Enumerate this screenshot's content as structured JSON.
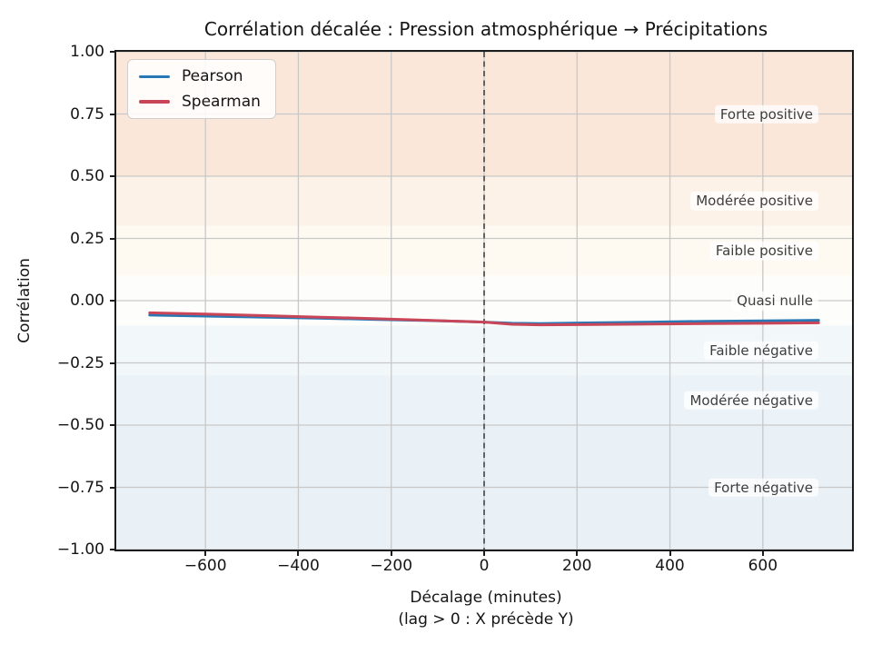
{
  "chart_data": {
    "type": "line",
    "title": "Corrélation décalée : Pression atmosphérique → Précipitations",
    "xlabel": "Décalage (minutes)",
    "xlabel_sub": "(lag > 0 : X précède Y)",
    "ylabel": "Corrélation",
    "xlim": [
      -792,
      792
    ],
    "ylim": [
      -1.0,
      1.0
    ],
    "grid": true,
    "grid_color": "#c8c8c8",
    "legend_position": "upper left",
    "xticks": [
      {
        "label": "−600",
        "value": -600
      },
      {
        "label": "−400",
        "value": -400
      },
      {
        "label": "−200",
        "value": -200
      },
      {
        "label": "0",
        "value": 0
      },
      {
        "label": "200",
        "value": 200
      },
      {
        "label": "400",
        "value": 400
      },
      {
        "label": "600",
        "value": 600
      }
    ],
    "yticks": [
      {
        "label": "1.00",
        "value": 1.0
      },
      {
        "label": "0.75",
        "value": 0.75
      },
      {
        "label": "0.50",
        "value": 0.5
      },
      {
        "label": "0.25",
        "value": 0.25
      },
      {
        "label": "0.00",
        "value": 0.0
      },
      {
        "label": "−0.25",
        "value": -0.25
      },
      {
        "label": "−0.50",
        "value": -0.5
      },
      {
        "label": "−0.75",
        "value": -0.75
      },
      {
        "label": "−1.00",
        "value": -1.0
      }
    ],
    "vline": {
      "value": 0,
      "style": "dashed",
      "color": "#4d4d4d"
    },
    "x": [
      -720,
      -600,
      -480,
      -360,
      -240,
      -120,
      0,
      60,
      120,
      240,
      360,
      480,
      600,
      720
    ],
    "series": [
      {
        "name": "Pearson",
        "color": "#2878b5",
        "values": [
          -0.058,
          -0.062,
          -0.066,
          -0.07,
          -0.075,
          -0.08,
          -0.086,
          -0.091,
          -0.092,
          -0.089,
          -0.086,
          -0.083,
          -0.081,
          -0.079
        ]
      },
      {
        "name": "Spearman",
        "color": "#c94558",
        "values": [
          -0.049,
          -0.054,
          -0.06,
          -0.066,
          -0.072,
          -0.079,
          -0.086,
          -0.095,
          -0.097,
          -0.096,
          -0.094,
          -0.092,
          -0.091,
          -0.089
        ]
      }
    ],
    "bands": [
      {
        "label": "Forte positive",
        "from": 0.5,
        "to": 1.0,
        "color": "#fbe7da",
        "label_y": 0.75
      },
      {
        "label": "Modérée positive",
        "from": 0.3,
        "to": 0.5,
        "color": "#fdf2e7",
        "label_y": 0.4
      },
      {
        "label": "Faible positive",
        "from": 0.1,
        "to": 0.3,
        "color": "#fefaf2",
        "label_y": 0.2
      },
      {
        "label": "Quasi nulle",
        "from": -0.1,
        "to": 0.1,
        "color": "#fdfdfc",
        "label_y": 0.0
      },
      {
        "label": "Faible négative",
        "from": -0.3,
        "to": -0.1,
        "color": "#f2f7fa",
        "label_y": -0.2
      },
      {
        "label": "Modérée négative",
        "from": -0.5,
        "to": -0.3,
        "color": "#ecf3f8",
        "label_y": -0.4
      },
      {
        "label": "Forte négative",
        "from": -1.0,
        "to": -0.5,
        "color": "#e9f0f6",
        "label_y": -0.75
      }
    ]
  }
}
